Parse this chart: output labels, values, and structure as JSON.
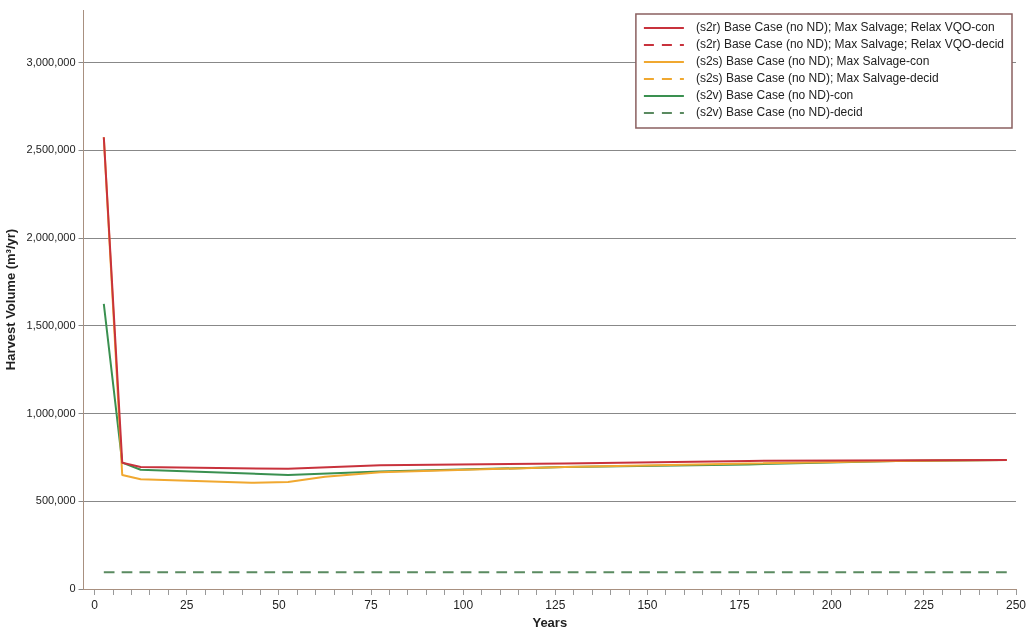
{
  "chart_data": {
    "type": "line",
    "xlabel": "Years",
    "ylabel": "Harvest Volume (m³/yr)",
    "xlim": [
      -3,
      250
    ],
    "ylim": [
      0,
      3300000
    ],
    "xticks": [
      0,
      {
        "value": 5,
        "label": null
      },
      {
        "value": 10,
        "label": null
      },
      {
        "value": 15,
        "label": null
      },
      {
        "value": 20,
        "label": null
      },
      25,
      {
        "value": 30,
        "label": null
      },
      {
        "value": 35,
        "label": null
      },
      {
        "value": 40,
        "label": null
      },
      {
        "value": 45,
        "label": null
      },
      50,
      {
        "value": 55,
        "label": null
      },
      {
        "value": 60,
        "label": null
      },
      {
        "value": 65,
        "label": null
      },
      {
        "value": 70,
        "label": null
      },
      75,
      {
        "value": 80,
        "label": null
      },
      {
        "value": 85,
        "label": null
      },
      {
        "value": 90,
        "label": null
      },
      {
        "value": 95,
        "label": null
      },
      100,
      {
        "value": 105,
        "label": null
      },
      {
        "value": 110,
        "label": null
      },
      {
        "value": 115,
        "label": null
      },
      {
        "value": 120,
        "label": null
      },
      125,
      {
        "value": 130,
        "label": null
      },
      {
        "value": 135,
        "label": null
      },
      {
        "value": 140,
        "label": null
      },
      {
        "value": 145,
        "label": null
      },
      150,
      {
        "value": 155,
        "label": null
      },
      {
        "value": 160,
        "label": null
      },
      {
        "value": 165,
        "label": null
      },
      {
        "value": 170,
        "label": null
      },
      175,
      {
        "value": 180,
        "label": null
      },
      {
        "value": 185,
        "label": null
      },
      {
        "value": 190,
        "label": null
      },
      {
        "value": 195,
        "label": null
      },
      200,
      {
        "value": 205,
        "label": null
      },
      {
        "value": 210,
        "label": null
      },
      {
        "value": 215,
        "label": null
      },
      {
        "value": 220,
        "label": null
      },
      225,
      {
        "value": 230,
        "label": null
      },
      {
        "value": 235,
        "label": null
      },
      {
        "value": 240,
        "label": null
      },
      {
        "value": 245,
        "label": null
      },
      250
    ],
    "yticks": [
      {
        "value": 0,
        "label": "0"
      },
      {
        "value": 500000,
        "label": "500,000"
      },
      {
        "value": 1000000,
        "label": "1,000,000"
      },
      {
        "value": 1500000,
        "label": "1,500,000"
      },
      {
        "value": 2000000,
        "label": "2,000,000"
      },
      {
        "value": 2500000,
        "label": "2,500,000"
      },
      {
        "value": 3000000,
        "label": "3,000,000"
      }
    ],
    "grid": "y",
    "legend": "top right",
    "marker": "none",
    "series": [
      {
        "name": "(s2r) Base Case (no ND); Max Salvage; Relax VQO-con",
        "color": "#c8323c",
        "line_style": "solid",
        "x": [
          2.5,
          7.5,
          12.5,
          52.5,
          77.5,
          127.5,
          177.5,
          247.5
        ],
        "values": [
          2575000,
          720000,
          695000,
          685000,
          705000,
          715000,
          730000,
          735000
        ]
      },
      {
        "name": "(s2r) Base Case (no ND); Max Salvage; Relax VQO-decid",
        "color": "#c8323c",
        "line_style": "dashed"
      },
      {
        "name": "(s2s) Base Case (no ND); Max Salvage-con",
        "color": "#f0a830",
        "line_style": "solid",
        "x": [
          2.5,
          7.5,
          12.5,
          42.5,
          52.5,
          62.5,
          77.5,
          127.5,
          177.5,
          217.5,
          247.5
        ],
        "values": [
          2575000,
          650000,
          625000,
          605000,
          610000,
          640000,
          665000,
          695000,
          715000,
          730000,
          735000
        ]
      },
      {
        "name": "(s2s) Base Case (no ND); Max Salvage-decid",
        "color": "#f0a830",
        "line_style": "dashed"
      },
      {
        "name": "(s2v) Base Case (no ND)-con",
        "color": "#3a9050",
        "line_style": "solid",
        "x": [
          2.5,
          7.5,
          12.5,
          52.5,
          77.5,
          127.5,
          177.5,
          217.5,
          247.5
        ],
        "values": [
          1625000,
          720000,
          680000,
          650000,
          670000,
          695000,
          710000,
          730000,
          735000
        ]
      },
      {
        "name": "(s2v) Base Case (no ND)-decid",
        "color": "#5a8a60",
        "line_style": "dashed",
        "x": [
          2.5,
          247.5
        ],
        "values": [
          95000,
          95000
        ]
      }
    ]
  }
}
